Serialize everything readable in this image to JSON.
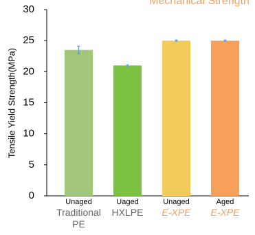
{
  "chart_data": {
    "type": "bar",
    "title": "Mechanical Strength",
    "y_label": "Tensile Yield Strength(MPa)",
    "categories": [
      "Unaged",
      "Uaged",
      "Unaged",
      "Aged"
    ],
    "group_labels": [
      "Traditional PE",
      "HXLPE",
      "E-XPE",
      "E-XPE"
    ],
    "values": [
      23.5,
      21,
      25,
      25
    ],
    "errors": [
      0.6,
      0.1,
      0.1,
      0.1
    ],
    "colors": [
      "#a3c77a",
      "#7dc142",
      "#f4cb5a",
      "#f7a05a"
    ],
    "group_label_colors": [
      "#666666",
      "#666666",
      "#f7a05a",
      "#f7a05a"
    ],
    "error_color": "#5b9bd5",
    "ylim": [
      0,
      30
    ],
    "yticks": [
      0,
      5,
      10,
      15,
      20,
      25,
      30
    ],
    "grid": false
  }
}
